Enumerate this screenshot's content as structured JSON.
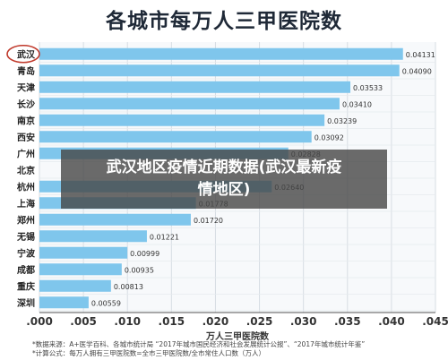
{
  "chart_data": {
    "type": "bar",
    "orientation": "horizontal",
    "title": "各城市每万人三甲医院数",
    "xlabel": "万人三甲医院数",
    "categories": [
      "武汉",
      "青岛",
      "天津",
      "长沙",
      "南京",
      "西安",
      "广州",
      "北京",
      "杭州",
      "上海",
      "郑州",
      "无锡",
      "宁波",
      "成都",
      "重庆",
      "深圳"
    ],
    "values": [
      0.04131,
      0.0409,
      0.03533,
      0.0341,
      0.03239,
      0.03092,
      0.02828,
      null,
      0.0264,
      0.01778,
      0.0172,
      0.01221,
      0.00999,
      0.00935,
      0.00813,
      0.00559
    ],
    "value_labels": [
      "0.04131",
      "0.04090",
      "0.03533",
      "0.03410",
      "0.03239",
      "0.03092",
      "0.02828",
      "",
      "0.02640",
      "0.01778",
      "0.01720",
      "0.01221",
      "0.00999",
      "0.00935",
      "0.00813",
      "0.00559"
    ],
    "xticks": [
      ".000",
      ".005",
      ".010",
      ".015",
      ".020",
      ".025",
      ".030",
      ".035",
      ".040",
      ".045"
    ],
    "xlim": [
      0,
      0.045
    ],
    "grid": true,
    "highlight_category": "武汉",
    "bar_color": "#7fc6ec"
  },
  "overlay": {
    "line1": "武汉地区疫情近期数据(武汉最新疫",
    "line2": "情地区)"
  },
  "notes": {
    "source": "*数据来源：A+医学百科、各城市统计局 “2017年城市国民经济和社会发展统计公报”、“2017年城市统计年鉴”",
    "formula": "*计算公式：每万人拥有三甲医院数=全市三甲医院数/全市常住人口数（万人）"
  }
}
